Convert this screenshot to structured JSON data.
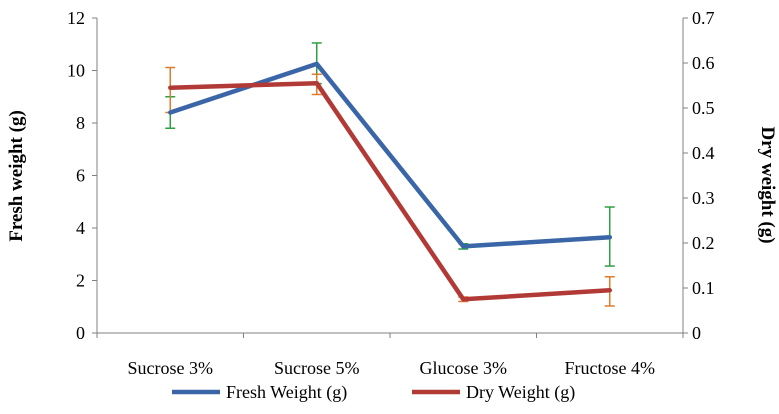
{
  "chart_data": {
    "type": "line",
    "categories": [
      "Sucrose 3%",
      "Sucrose 5%",
      "Glucose 3%",
      "Fructose 4%"
    ],
    "series": [
      {
        "name": "Fresh Weight (g)",
        "axis": "left",
        "color": "#3a66a8",
        "values": [
          8.4,
          10.25,
          3.3,
          3.65
        ],
        "error_low": [
          7.8,
          9.5,
          3.2,
          2.55
        ],
        "error_high": [
          9.0,
          11.05,
          3.4,
          4.8
        ],
        "error_color": "#2ea043"
      },
      {
        "name": "Dry Weight (g)",
        "axis": "right",
        "color": "#b23a36",
        "values": [
          0.545,
          0.555,
          0.075,
          0.095
        ],
        "error_low": [
          0.49,
          0.53,
          0.07,
          0.06
        ],
        "error_high": [
          0.59,
          0.575,
          0.08,
          0.125
        ],
        "error_color": "#e07b2c"
      }
    ],
    "ylabel": "Fresh weight (g)",
    "y2label": "Dry weight (g)",
    "ylim": [
      0,
      12
    ],
    "y2lim": [
      0,
      0.7
    ],
    "yticks": [
      "0",
      "2",
      "4",
      "6",
      "8",
      "10",
      "12"
    ],
    "y2ticks": [
      "0",
      "0.1",
      "0.2",
      "0.3",
      "0.4",
      "0.5",
      "0.6",
      "0.7"
    ],
    "grid": false,
    "legend": "bottom"
  }
}
